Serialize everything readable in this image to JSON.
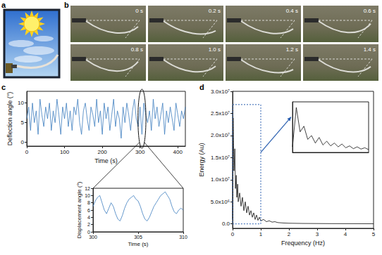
{
  "panel_labels": [
    "a",
    "b",
    "c",
    "d"
  ],
  "frames": [
    "0 s",
    "0.2 s",
    "0.4 s",
    "0.6 s",
    "0.8 s",
    "1.0 s",
    "1.2 s",
    "1.4 s"
  ],
  "chart_data": [
    {
      "type": "line",
      "x_label": "Time (s)",
      "y_label": "Deflection angle (°)",
      "color": "#3d7ebf",
      "xlim": [
        0,
        420
      ],
      "xticks": [
        0,
        100,
        200,
        300,
        400
      ],
      "ylim": [
        -1,
        13
      ],
      "yticks": [
        0,
        5,
        10
      ],
      "zoom_range": [
        300,
        310
      ],
      "x": [
        0,
        5,
        10,
        15,
        20,
        25,
        30,
        35,
        40,
        45,
        50,
        55,
        60,
        65,
        70,
        75,
        80,
        85,
        90,
        95,
        100,
        105,
        110,
        115,
        120,
        125,
        130,
        135,
        140,
        145,
        150,
        155,
        160,
        165,
        170,
        175,
        180,
        185,
        190,
        195,
        200,
        205,
        210,
        215,
        220,
        225,
        230,
        235,
        240,
        245,
        250,
        255,
        260,
        265,
        270,
        275,
        280,
        285,
        290,
        295,
        300,
        305,
        310,
        315,
        320,
        325,
        330,
        335,
        340,
        345,
        350,
        355,
        360,
        365,
        370,
        375,
        380,
        385,
        390,
        395,
        400,
        405,
        410,
        415,
        420
      ],
      "values": [
        6,
        9,
        3,
        10,
        5,
        8,
        2,
        11,
        7,
        4,
        9,
        6,
        10,
        3,
        8,
        5,
        11,
        7,
        2,
        9,
        6,
        10,
        4,
        8,
        3,
        9,
        7,
        11,
        5,
        2,
        8,
        10,
        6,
        3,
        9,
        7,
        4,
        11,
        5,
        8,
        2,
        10,
        6,
        9,
        3,
        7,
        11,
        4,
        8,
        6,
        1,
        9,
        5,
        10,
        7,
        3,
        8,
        11,
        6,
        4,
        9,
        2,
        10,
        7,
        5,
        8,
        3,
        11,
        6,
        9,
        4,
        7,
        10,
        2,
        8,
        5,
        9,
        6,
        3,
        10,
        7,
        4,
        8,
        6,
        9
      ]
    },
    {
      "type": "line",
      "x_label": "Time (s)",
      "y_label": "Displacement angle (°)",
      "color": "#3d7ebf",
      "xlim": [
        300,
        310
      ],
      "xticks": [
        300,
        305,
        310
      ],
      "ylim": [
        0,
        12
      ],
      "yticks": [
        0,
        2,
        4,
        6,
        8,
        10,
        12
      ],
      "x": [
        300,
        300.25,
        300.5,
        300.75,
        301,
        301.25,
        301.5,
        301.75,
        302,
        302.25,
        302.5,
        302.75,
        303,
        303.25,
        303.5,
        303.75,
        304,
        304.25,
        304.5,
        304.75,
        305,
        305.25,
        305.5,
        305.75,
        306,
        306.25,
        306.5,
        306.75,
        307,
        307.25,
        307.5,
        307.75,
        308,
        308.25,
        308.5,
        308.75,
        309,
        309.25,
        309.5,
        309.75,
        310
      ],
      "values": [
        7,
        8.5,
        9.5,
        10,
        8,
        6,
        5,
        6.5,
        8,
        7,
        5,
        3.5,
        3,
        4.5,
        6.5,
        8,
        9,
        9.5,
        10,
        9,
        8.5,
        7,
        5,
        3.5,
        3,
        4,
        5.5,
        7,
        8,
        9,
        10,
        10.5,
        11,
        10,
        9,
        7,
        5.5,
        5,
        6,
        6.5,
        6
      ]
    },
    {
      "type": "line",
      "x_label": "Frequency (Hz)",
      "y_label": "Energy (Au)",
      "color": "#111111",
      "xlim": [
        0,
        5
      ],
      "xticks": [
        0,
        1,
        2,
        3,
        4,
        5
      ],
      "ylim": [
        -1000000,
        30000000
      ],
      "yticks": [
        {
          "value": 0,
          "label": "0.0"
        },
        {
          "value": 5000000,
          "label": "5.0x10⁶"
        },
        {
          "value": 10000000,
          "label": "1.0x10⁷"
        },
        {
          "value": 15000000,
          "label": "1.5x10⁷"
        },
        {
          "value": 20000000,
          "label": "2.0x10⁷"
        },
        {
          "value": 25000000,
          "label": "2.5x10⁷"
        },
        {
          "value": 30000000,
          "label": "3.0x10⁷"
        }
      ],
      "zoom_box": {
        "xlim": [
          0,
          1
        ],
        "ylim": [
          0,
          27000000
        ]
      },
      "x": [
        0,
        0.02,
        0.05,
        0.08,
        0.1,
        0.13,
        0.15,
        0.18,
        0.2,
        0.25,
        0.3,
        0.35,
        0.4,
        0.45,
        0.5,
        0.55,
        0.6,
        0.65,
        0.7,
        0.75,
        0.8,
        0.85,
        0.9,
        0.95,
        1.0,
        1.1,
        1.2,
        1.3,
        1.4,
        1.5,
        1.6,
        1.8,
        2.0,
        2.5,
        3.0,
        3.5,
        4.0,
        4.5,
        5.0
      ],
      "values": [
        1000000,
        24000000,
        12000000,
        17000000,
        8000000,
        11000000,
        6000000,
        9000000,
        5000000,
        7000000,
        4000000,
        6000000,
        3000000,
        5000000,
        2500000,
        4000000,
        2000000,
        3000000,
        1500000,
        2500000,
        1000000,
        2000000,
        800000,
        1500000,
        700000,
        1000000,
        500000,
        700000,
        400000,
        500000,
        300000,
        200000,
        150000,
        100000,
        80000,
        60000,
        50000,
        40000,
        30000
      ]
    },
    {
      "type": "line",
      "color": "#111111",
      "tick_labels": false,
      "xlim": [
        0,
        1
      ],
      "ylim": [
        0,
        27000000
      ],
      "x": [
        0,
        0.05,
        0.1,
        0.15,
        0.2,
        0.25,
        0.3,
        0.35,
        0.4,
        0.45,
        0.5,
        0.55,
        0.6,
        0.65,
        0.7,
        0.75,
        0.8,
        0.85,
        0.9,
        0.95,
        1.0
      ],
      "values": [
        3000000,
        24000000,
        11000000,
        14000000,
        7000000,
        9000000,
        5000000,
        8000000,
        4000000,
        6000000,
        3500000,
        5000000,
        3000000,
        4500000,
        2500000,
        3500000,
        2000000,
        3000000,
        1800000,
        2500000,
        1500000
      ]
    }
  ]
}
